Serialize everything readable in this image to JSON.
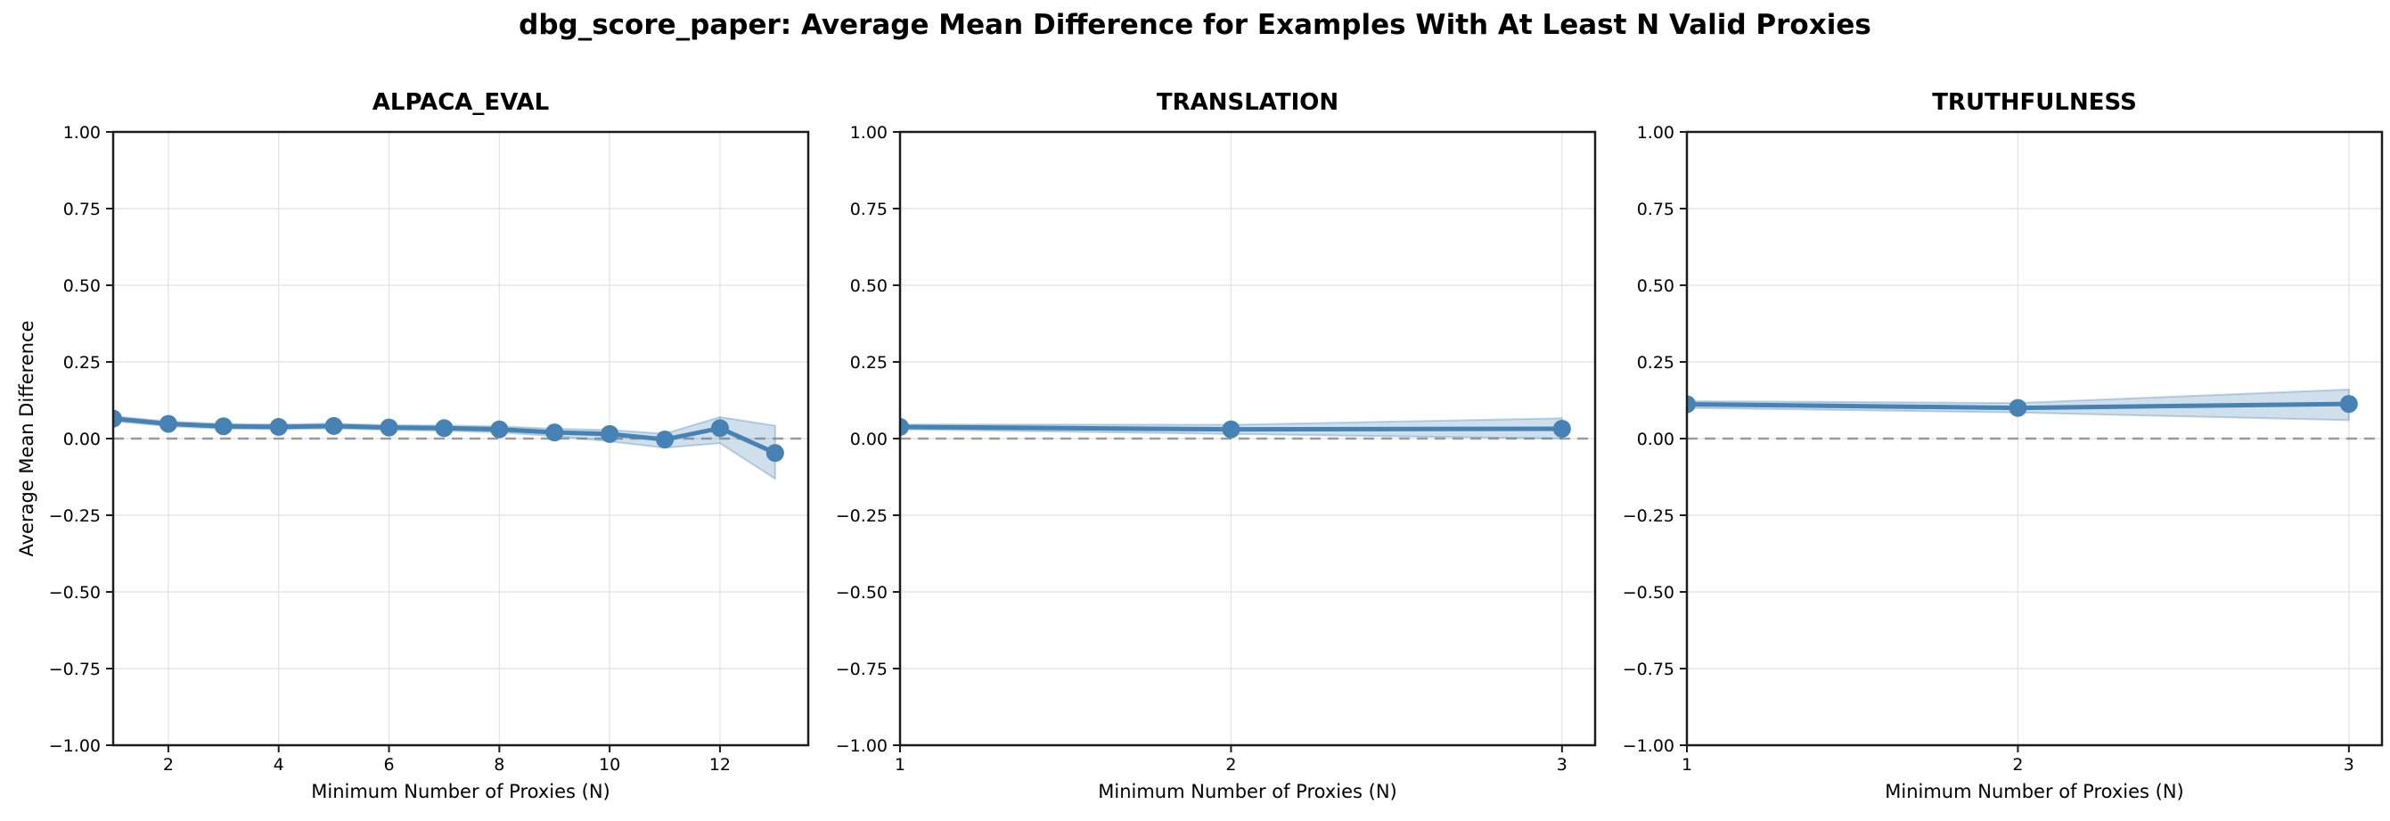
{
  "suptitle": "dbg_score_paper: Average Mean Difference for Examples With At Least N Valid Proxies",
  "colors": {
    "line": "#4682b4",
    "band": "#4682b4",
    "grid": "#e5e5e5",
    "zero_line": "#9b9b9b",
    "spine": "#1c1c1c",
    "text": "#000000"
  },
  "chart_data": [
    {
      "type": "line",
      "title": "ALPACA_EVAL",
      "xlabel": "Minimum Number of Proxies (N)",
      "ylabel": "Average Mean Difference",
      "legend_position": "none",
      "grid": true,
      "zero_line_dashed": true,
      "xlim": [
        1,
        13.6
      ],
      "ylim": [
        -1,
        1
      ],
      "xticks": [
        2,
        4,
        6,
        8,
        10,
        12
      ],
      "yticks": [
        1.0,
        0.75,
        0.5,
        0.25,
        0.0,
        -0.25,
        -0.5,
        -0.75,
        -1.0
      ],
      "x": [
        1,
        2,
        3,
        4,
        5,
        6,
        7,
        8,
        9,
        10,
        11,
        12,
        13
      ],
      "y": [
        0.065,
        0.048,
        0.04,
        0.038,
        0.041,
        0.036,
        0.034,
        0.03,
        0.02,
        0.015,
        -0.003,
        0.034,
        -0.047
      ],
      "band_upper": [
        0.073,
        0.056,
        0.048,
        0.046,
        0.049,
        0.044,
        0.043,
        0.04,
        0.032,
        0.028,
        0.016,
        0.07,
        0.042
      ],
      "band_lower": [
        0.057,
        0.04,
        0.032,
        0.03,
        0.033,
        0.028,
        0.025,
        0.02,
        0.008,
        -0.009,
        -0.03,
        -0.015,
        -0.131
      ]
    },
    {
      "type": "line",
      "title": "TRANSLATION",
      "xlabel": "Minimum Number of Proxies (N)",
      "ylabel": "",
      "legend_position": "none",
      "grid": true,
      "zero_line_dashed": true,
      "xlim": [
        1,
        3.1
      ],
      "ylim": [
        -1,
        1
      ],
      "xticks": [
        1,
        2,
        3
      ],
      "yticks": [
        1.0,
        0.75,
        0.5,
        0.25,
        0.0,
        -0.25,
        -0.5,
        -0.75,
        -1.0
      ],
      "x": [
        1,
        2,
        3
      ],
      "y": [
        0.038,
        0.03,
        0.032
      ],
      "band_upper": [
        0.046,
        0.045,
        0.066
      ],
      "band_lower": [
        0.03,
        0.015,
        0.0
      ]
    },
    {
      "type": "line",
      "title": "TRUTHFULNESS",
      "xlabel": "Minimum Number of Proxies (N)",
      "ylabel": "",
      "legend_position": "none",
      "grid": true,
      "zero_line_dashed": true,
      "xlim": [
        1,
        3.1
      ],
      "ylim": [
        -1,
        1
      ],
      "xticks": [
        1,
        2,
        3
      ],
      "yticks": [
        1.0,
        0.75,
        0.5,
        0.25,
        0.0,
        -0.25,
        -0.5,
        -0.75,
        -1.0
      ],
      "x": [
        1,
        2,
        3
      ],
      "y": [
        0.112,
        0.1,
        0.113
      ],
      "band_upper": [
        0.122,
        0.116,
        0.16
      ],
      "band_lower": [
        0.1,
        0.085,
        0.06
      ]
    }
  ]
}
